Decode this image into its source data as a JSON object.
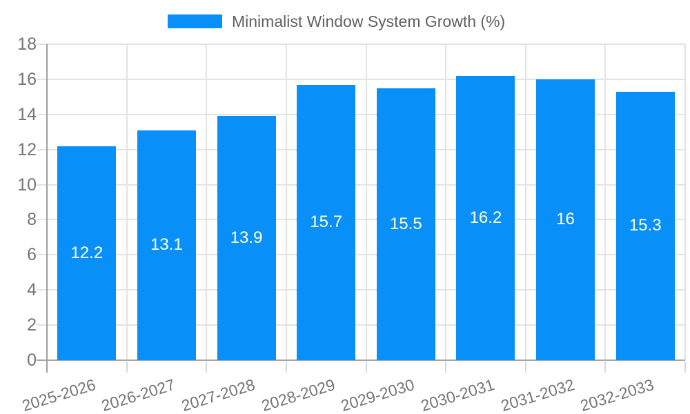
{
  "legend": {
    "label": "Minimalist Window System Growth (%)"
  },
  "chart_data": {
    "type": "bar",
    "title": "Minimalist Window System Growth (%)",
    "categories": [
      "2025-2026",
      "2026-2027",
      "2027-2028",
      "2028-2029",
      "2029-2030",
      "2030-2031",
      "2031-2032",
      "2032-2033"
    ],
    "values": [
      12.2,
      13.1,
      13.9,
      15.7,
      15.5,
      16.2,
      16,
      15.3
    ],
    "bar_labels": [
      "12.2",
      "13.1",
      "13.9",
      "15.7",
      "15.5",
      "16.2",
      "16",
      "15.3"
    ],
    "xlabel": "",
    "ylabel": "",
    "ylim": [
      0,
      18
    ],
    "yticks": [
      0,
      2,
      4,
      6,
      8,
      10,
      12,
      14,
      16,
      18
    ],
    "grid": "on",
    "legend_position": "top-center",
    "colors": {
      "bar": "#0890f8",
      "grid": "#e3e3e3",
      "axis": "#9e9e9e",
      "baseline": "#a6a6a6",
      "tick_mark": "#d8d8d8",
      "tick_text": "#757575",
      "legend_text": "#616161",
      "bar_label_text": "#ffffff",
      "background": "#ffffff"
    }
  }
}
